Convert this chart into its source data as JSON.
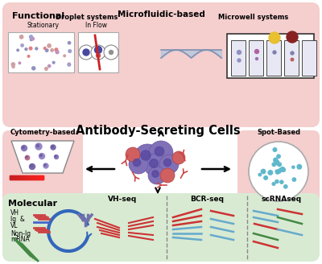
{
  "bg_color": "#ffffff",
  "functional_bg": "#f5cece",
  "molecular_bg": "#d9ead3",
  "title": "Antibody-Secreting Cells",
  "functional_label": "Functional",
  "molecular_label": "Molecular",
  "microfluidic_label": "Microfluidic-based",
  "droplet_label": "Droplet systems",
  "stationary_label": "Stationary",
  "inflow_label": "In Flow",
  "microwell_label": "Microwell systems",
  "cytometry_label": "Cytometry-based",
  "spot_label": "Spot-Based",
  "vh_seq_label": "VH-seq",
  "bcr_seq_label": "BCR-seq",
  "scrna_label": "scRNAseq"
}
